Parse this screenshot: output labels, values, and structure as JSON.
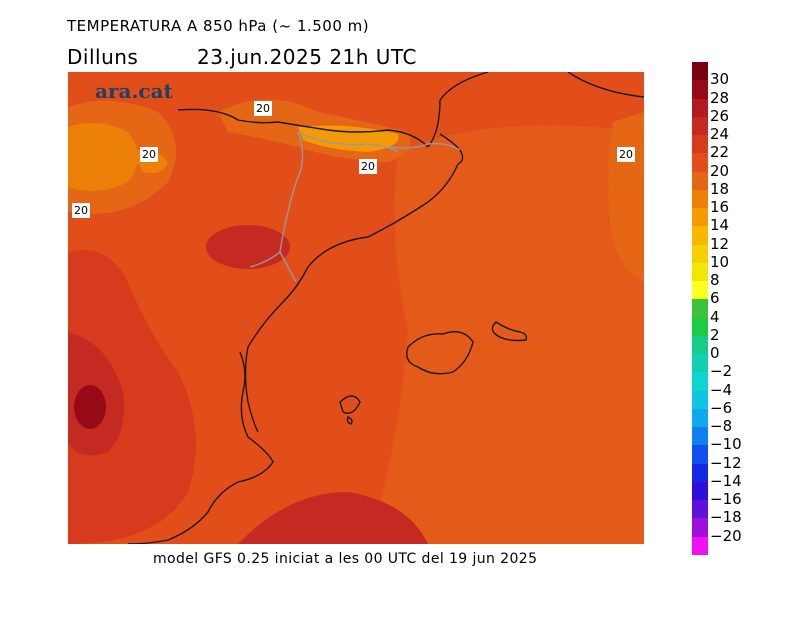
{
  "header": {
    "title": "TEMPERATURA A 850 hPa (~ 1.500 m)",
    "day": "Dilluns",
    "datetime": "23.jun.2025 21h UTC"
  },
  "brand": "ara.cat",
  "footer": "model GFS 0.25 iniciat a les 00 UTC del 19 jun 2025",
  "contour_labels": [
    "20",
    "20",
    "20",
    "20",
    "20"
  ],
  "legend": {
    "labels": [
      "30",
      "28",
      "26",
      "24",
      "22",
      "20",
      "18",
      "16",
      "14",
      "12",
      "10",
      "8",
      "6",
      "4",
      "2",
      "0",
      "−2",
      "−4",
      "−6",
      "−8",
      "−10",
      "−12",
      "−14",
      "−16",
      "−18",
      "−20"
    ],
    "colors": [
      "#7a0010",
      "#960a18",
      "#b01a20",
      "#c42a22",
      "#d83a1e",
      "#e24e1a",
      "#e56614",
      "#ec8008",
      "#f49a06",
      "#f8b800",
      "#f4d000",
      "#f0e800",
      "#ffff20",
      "#3ec23a",
      "#1ecc44",
      "#16cc88",
      "#10d0b0",
      "#10d4d0",
      "#10c4e4",
      "#10a8ee",
      "#1080f0",
      "#1050ee",
      "#1428e4",
      "#2e10dc",
      "#6010dc",
      "#a010dc",
      "#f010f0"
    ]
  }
}
